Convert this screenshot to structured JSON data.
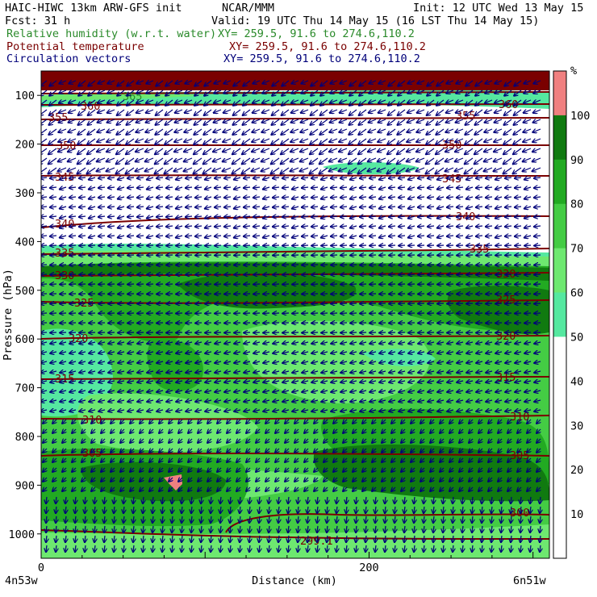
{
  "header": {
    "model": "HAIC-HIWC 13km ARW-GFS init",
    "org": "NCAR/MMM",
    "init": "Init: 12 UTC Wed 13 May 15",
    "fcst": "Fcst:   31 h",
    "valid": "Valid: 19 UTC Thu 14 May 15 (16 LST Thu 14 May 15)",
    "rh_label": "Relative humidity (w.r.t. water)",
    "rh_xy": "XY= 259.5, 91.6 to 274.6,110.2",
    "theta_label": "Potential temperature",
    "theta_xy": "XY= 259.5, 91.6 to 274.6,110.2",
    "vec_label": "Circulation vectors",
    "vec_xy": "XY= 259.5, 91.6 to 274.6,110.2"
  },
  "colors": {
    "rh": "#2a8a2a",
    "theta": "#7a0000",
    "vectors": "#00007a",
    "text": "#000000"
  },
  "chart_data": {
    "type": "contour",
    "ylabel": "Pressure (hPa)",
    "xlabel": "Distance (km)",
    "x_ticks": [
      "0",
      "200"
    ],
    "x_endpoints": [
      "4n53w",
      "6n51w"
    ],
    "y_ticks": [
      100,
      200,
      300,
      400,
      500,
      600,
      700,
      800,
      900,
      1000
    ],
    "xlim": [
      0,
      310
    ],
    "ylim_hpa": [
      1050,
      50
    ],
    "theta_contours": [
      {
        "label": "365",
        "p": 110
      },
      {
        "label": "360",
        "p": 128
      },
      {
        "label": "355",
        "p": 150
      },
      {
        "label": "350",
        "p": 195
      },
      {
        "label": "345",
        "p": 268
      },
      {
        "label": "340",
        "p": 352
      },
      {
        "label": "335",
        "p": 418
      },
      {
        "label": "330",
        "p": 468
      },
      {
        "label": "325",
        "p": 530
      },
      {
        "label": "320",
        "p": 600
      },
      {
        "label": "315",
        "p": 685
      },
      {
        "label": "310",
        "p": 765
      },
      {
        "label": "305",
        "p": 838
      },
      {
        "label": "300",
        "p": 975
      },
      {
        "label": "299.1",
        "p": 1010
      }
    ],
    "colorbar": {
      "unit": "%",
      "ticks": [
        "10",
        "20",
        "30",
        "40",
        "50",
        "60",
        "70",
        "80",
        "90",
        "100"
      ],
      "colors": [
        "#ffffff",
        "#ffffff",
        "#ffffff",
        "#ffffff",
        "#ffffff",
        "#55e8a0",
        "#6ee870",
        "#44cc44",
        "#22aa22",
        "#107a10",
        "#f08080"
      ]
    },
    "wind_direction": "easterly (leftward) aloft, northerly (downward) at low levels"
  }
}
